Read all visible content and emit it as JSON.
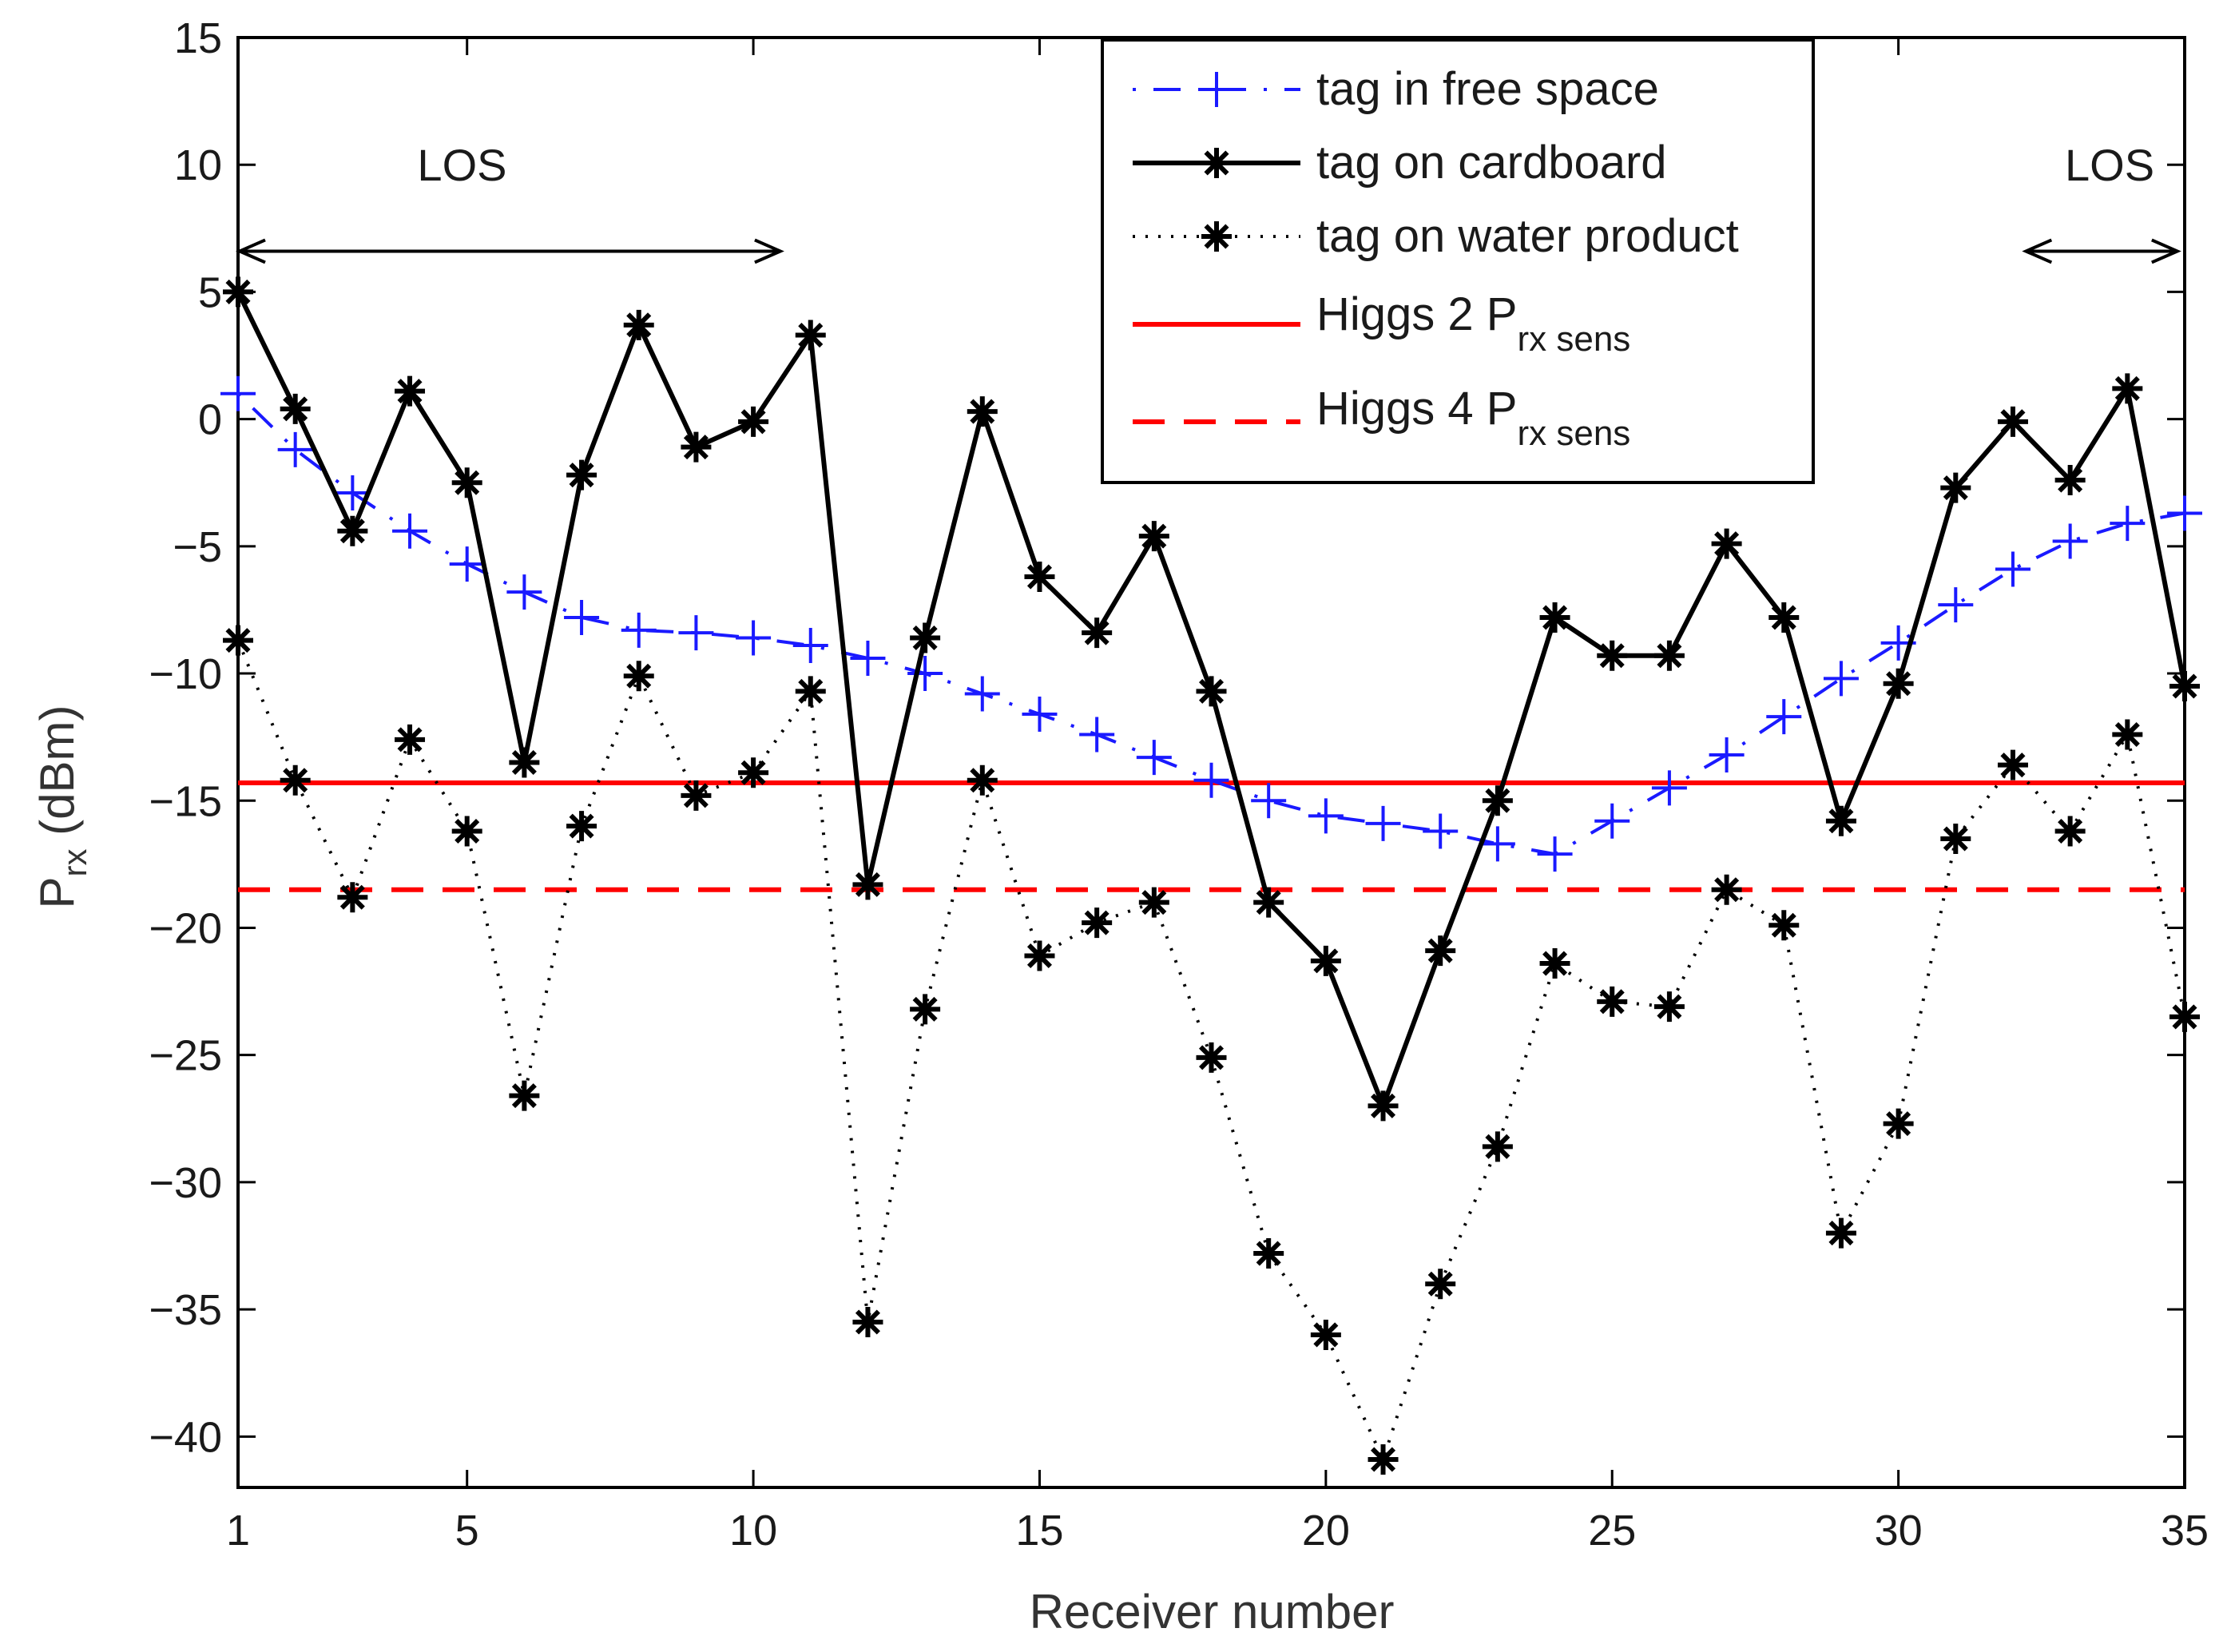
{
  "chart_data": {
    "type": "line",
    "title": "",
    "xlabel": "Receiver number",
    "ylabel": {
      "base": "P",
      "sub": "rx",
      "unit": " (dBm)"
    },
    "xlim": [
      1,
      35
    ],
    "ylim": [
      -42,
      15
    ],
    "xticks": [
      1,
      5,
      10,
      15,
      20,
      25,
      30,
      35
    ],
    "yticks": [
      15,
      10,
      5,
      0,
      -5,
      -10,
      -15,
      -20,
      -25,
      -30,
      -35,
      -40
    ],
    "ytick_labels": [
      "15",
      "10",
      "5",
      "0",
      "−5",
      "−10",
      "−15",
      "−20",
      "−25",
      "−30",
      "−35",
      "−40"
    ],
    "grid": false,
    "legend_position": "top-right",
    "x": [
      1,
      2,
      3,
      4,
      5,
      6,
      7,
      8,
      9,
      10,
      11,
      12,
      13,
      14,
      15,
      16,
      17,
      18,
      19,
      20,
      21,
      22,
      23,
      24,
      25,
      26,
      27,
      28,
      29,
      30,
      31,
      32,
      33,
      34,
      35
    ],
    "series": [
      {
        "name": "tag in free space",
        "color": "#1a1aff",
        "line": "dashdot",
        "marker": "plus",
        "values": [
          1.0,
          -1.2,
          -2.9,
          -4.4,
          -5.7,
          -6.8,
          -7.8,
          -8.3,
          -8.4,
          -8.6,
          -8.9,
          -9.4,
          -10.0,
          -10.8,
          -11.6,
          -12.4,
          -13.3,
          -14.2,
          -15.0,
          -15.6,
          -15.9,
          -16.2,
          -16.7,
          -17.1,
          -15.8,
          -14.5,
          -13.2,
          -11.7,
          -10.2,
          -8.8,
          -7.3,
          -5.9,
          -4.8,
          -4.1,
          -3.7
        ]
      },
      {
        "name": "tag on cardboard",
        "color": "#000000",
        "line": "solid",
        "marker": "asterisk",
        "values": [
          5.0,
          0.4,
          -4.4,
          1.1,
          -2.5,
          -13.5,
          -2.2,
          3.7,
          -1.1,
          -0.1,
          3.3,
          -18.3,
          -8.6,
          0.3,
          -6.2,
          -8.4,
          -4.6,
          -10.7,
          -19.0,
          -21.3,
          -27.0,
          -20.9,
          -15.0,
          -7.8,
          -9.3,
          -9.3,
          -4.9,
          -7.8,
          -15.8,
          -10.4,
          -2.7,
          -0.1,
          -2.4,
          1.2,
          -10.5
        ]
      },
      {
        "name": "tag on water product",
        "color": "#000000",
        "line": "dotted",
        "marker": "asterisk",
        "values": [
          -8.7,
          -14.2,
          -18.8,
          -12.6,
          -16.2,
          -26.6,
          -16.0,
          -10.1,
          -14.8,
          -13.9,
          -10.7,
          -35.5,
          -23.2,
          -14.2,
          -21.1,
          -19.8,
          -19.0,
          -25.1,
          -32.8,
          -36.0,
          -40.9,
          -34.0,
          -28.6,
          -21.4,
          -22.9,
          -23.1,
          -18.5,
          -19.9,
          -32.0,
          -27.7,
          -16.5,
          -13.6,
          -16.2,
          -12.4,
          -23.5
        ]
      }
    ],
    "reference_lines": [
      {
        "name": "Higgs 2 P",
        "sub": "rx sens",
        "value": -14.3,
        "color": "#ff0000",
        "line": "solid"
      },
      {
        "name": "Higgs 4 P",
        "sub": "rx sens",
        "value": -18.5,
        "color": "#ff0000",
        "line": "dashed"
      }
    ],
    "annotations": [
      {
        "text": "LOS",
        "x_from": 1,
        "x_to": 10.5,
        "y_text": 10,
        "y_arrow": 6.6
      },
      {
        "text": "LOS",
        "x_from": 32.2,
        "x_to": 34.9,
        "y_text": 10,
        "y_arrow": 6.6
      }
    ]
  }
}
